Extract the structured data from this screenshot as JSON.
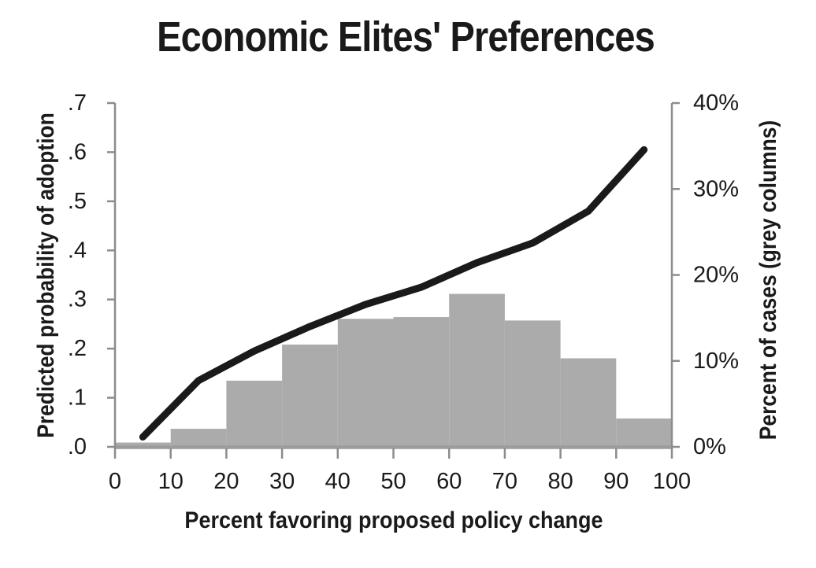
{
  "chart_data": {
    "type": "line+histogram",
    "title": "Economic Elites' Preferences",
    "x_axis": {
      "title": "Percent favoring proposed policy change",
      "tick_labels": [
        "0",
        "10",
        "20",
        "30",
        "40",
        "50",
        "60",
        "70",
        "80",
        "90",
        "100"
      ],
      "tick_values": [
        0,
        10,
        20,
        30,
        40,
        50,
        60,
        70,
        80,
        90,
        100
      ],
      "range": [
        0,
        100
      ]
    },
    "left_axis": {
      "title": "Predicted probability of adoption",
      "tick_labels": [
        ".0",
        ".1",
        ".2",
        ".3",
        ".4",
        ".5",
        ".6",
        ".7"
      ],
      "tick_values": [
        0,
        0.1,
        0.2,
        0.3,
        0.4,
        0.5,
        0.6,
        0.7
      ],
      "range": [
        0,
        0.7
      ],
      "applies_to": "black line"
    },
    "right_axis": {
      "title": "Percent of cases (grey columns)",
      "tick_labels": [
        "0%",
        "10%",
        "20%",
        "30%",
        "40%"
      ],
      "tick_values": [
        0,
        10,
        20,
        30,
        40
      ],
      "range": [
        0,
        40
      ],
      "applies_to": "grey columns"
    },
    "line_series": {
      "name": "Predicted probability of adoption",
      "x": [
        5,
        15,
        25,
        35,
        45,
        55,
        65,
        75,
        85,
        95
      ],
      "y": [
        0.02,
        0.135,
        0.195,
        0.245,
        0.29,
        0.325,
        0.375,
        0.415,
        0.48,
        0.605
      ]
    },
    "bar_series": {
      "name": "Percent of cases",
      "bin_edges": [
        0,
        10,
        20,
        30,
        40,
        50,
        60,
        70,
        80,
        90,
        100
      ],
      "values_percent": [
        0.5,
        2.1,
        7.7,
        11.9,
        14.9,
        15.1,
        17.8,
        14.7,
        10.3,
        3.3
      ]
    },
    "colors": {
      "line": "#1a1a1a",
      "bars": "#ababab",
      "axis": "#8c8c8c",
      "baseline": "#9c9c9c",
      "text": "#1a1a1a"
    },
    "grid": "off",
    "legend": "none"
  }
}
